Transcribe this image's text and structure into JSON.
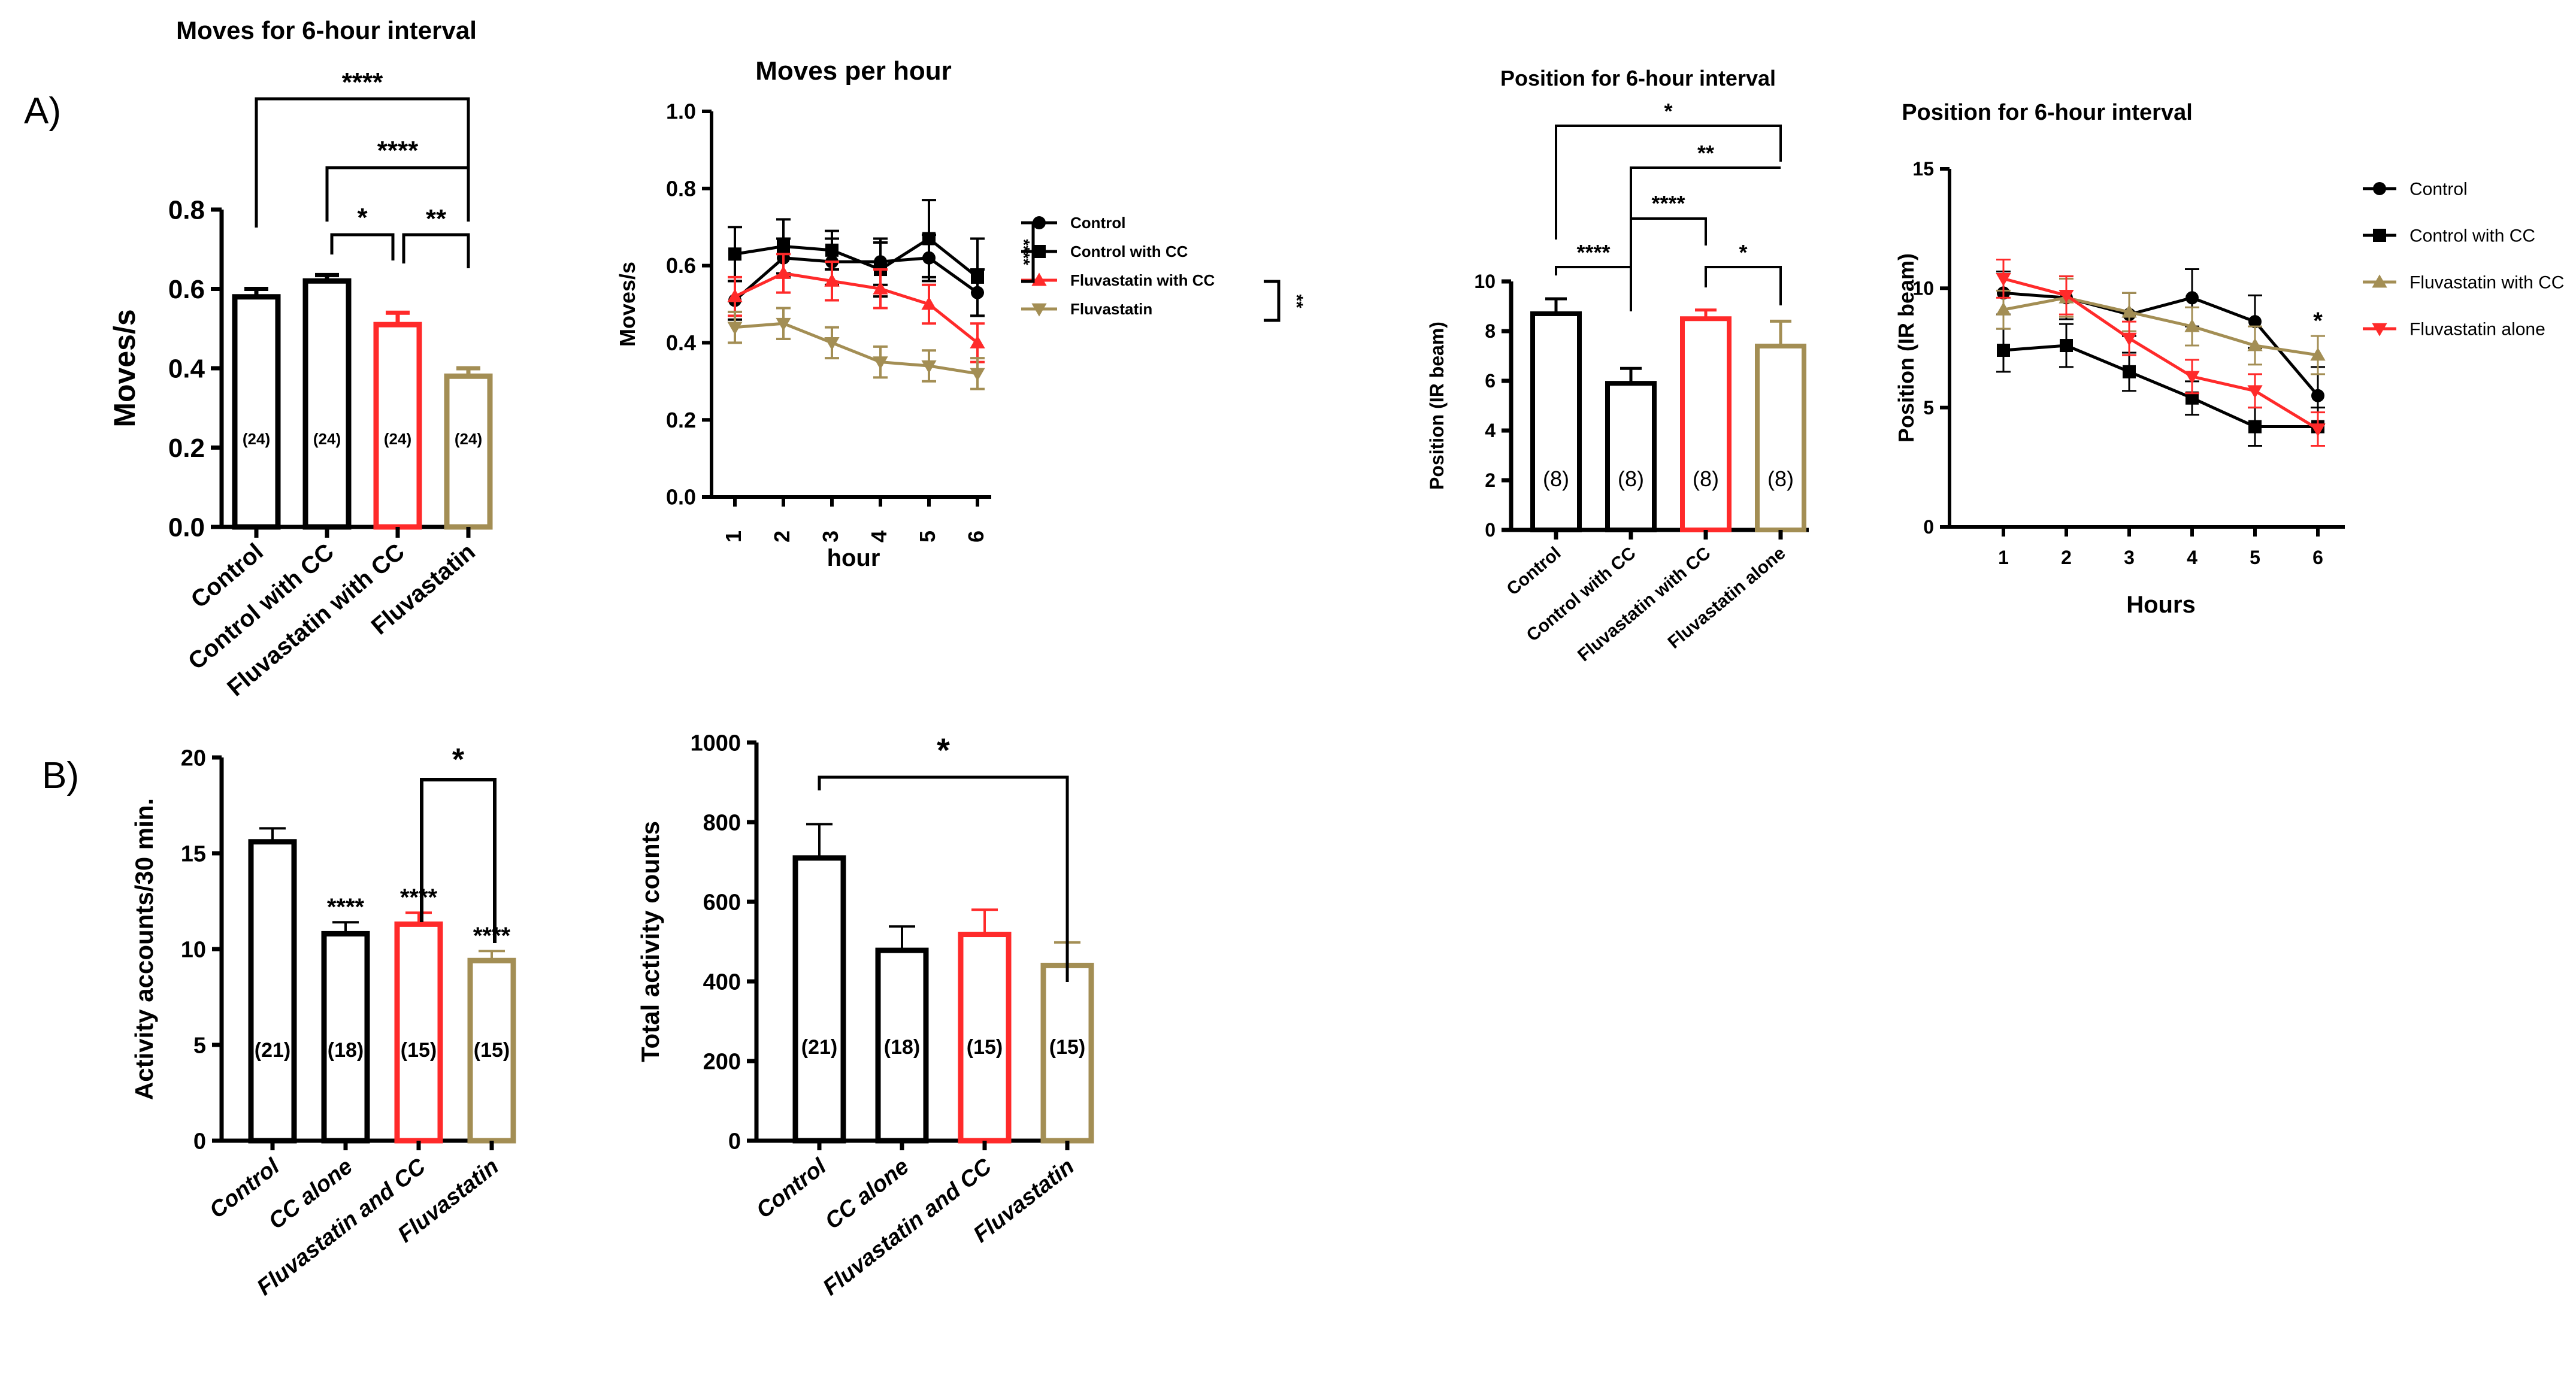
{
  "panel_labels": [
    "A)",
    "B)"
  ],
  "colors": {
    "control": "#000000",
    "control_cc": "#000000",
    "fluva_cc": "#ff2a2a",
    "fluva": "#a38e54",
    "axis": "#000000"
  },
  "chart_data": [
    {
      "id": "moves6h",
      "type": "bar",
      "title": "Moves for 6-hour interval",
      "xlabel": "",
      "ylabel": "Moves/s",
      "ylim": [
        0,
        0.8
      ],
      "yticks": [
        "0.0",
        "0.2",
        "0.4",
        "0.6",
        "0.8"
      ],
      "tick_values": [
        0,
        0.2,
        0.4,
        0.6,
        0.8
      ],
      "categories": [
        "Control",
        "Control with CC",
        "Fluvastatin with CC",
        "Fluvastatin"
      ],
      "values": [
        0.58,
        0.62,
        0.51,
        0.38
      ],
      "errors": [
        0.02,
        0.015,
        0.03,
        0.02
      ],
      "n_labels": [
        "(24)",
        "(24)",
        "(24)",
        "(24)"
      ],
      "bar_colors": [
        "#000000",
        "#000000",
        "#ff2a2a",
        "#a38e54"
      ],
      "annotations": [
        {
          "text": "****",
          "from": 0,
          "to": 3
        },
        {
          "text": "****",
          "from": 1,
          "to": 3
        },
        {
          "text": "*",
          "from": 1,
          "to": 2
        },
        {
          "text": "**",
          "from": 2,
          "to": 3
        }
      ]
    },
    {
      "id": "movesHour",
      "type": "line",
      "title": "Moves per hour",
      "xlabel": "hour",
      "ylabel": "Moves/s",
      "ylim": [
        0,
        1.0
      ],
      "yticks": [
        "0.0",
        "0.2",
        "0.4",
        "0.6",
        "0.8",
        "1.0"
      ],
      "tick_values": [
        0,
        0.2,
        0.4,
        0.6,
        0.8,
        1.0
      ],
      "x": [
        1,
        2,
        3,
        4,
        5,
        6
      ],
      "xticks": [
        "1",
        "2",
        "3",
        "4",
        "5",
        "6"
      ],
      "series": [
        {
          "name": "Control",
          "values": [
            0.51,
            0.62,
            0.61,
            0.61,
            0.62,
            0.53
          ],
          "errors": [
            0.05,
            0.05,
            0.06,
            0.06,
            0.06,
            0.06
          ],
          "color": "#000000",
          "marker": "circle"
        },
        {
          "name": "Control with CC",
          "values": [
            0.63,
            0.65,
            0.64,
            0.59,
            0.67,
            0.57
          ],
          "errors": [
            0.07,
            0.07,
            0.05,
            0.07,
            0.1,
            0.1
          ],
          "color": "#000000",
          "marker": "square"
        },
        {
          "name": "Fluvastatin with CC",
          "values": [
            0.52,
            0.58,
            0.56,
            0.54,
            0.5,
            0.4
          ],
          "errors": [
            0.05,
            0.05,
            0.05,
            0.05,
            0.05,
            0.05
          ],
          "color": "#ff2a2a",
          "marker": "triangle-up"
        },
        {
          "name": "Fluvastatin",
          "values": [
            0.44,
            0.45,
            0.4,
            0.35,
            0.34,
            0.32
          ],
          "errors": [
            0.04,
            0.04,
            0.04,
            0.04,
            0.04,
            0.04
          ],
          "color": "#a38e54",
          "marker": "triangle-down"
        }
      ],
      "legend_position": "right",
      "annotations": [
        {
          "text": "****"
        },
        {
          "text": "**"
        }
      ]
    },
    {
      "id": "pos6h",
      "type": "bar",
      "title": "Position for 6-hour interval",
      "xlabel": "",
      "ylabel": "Position (IR beam)",
      "ylim": [
        0,
        10
      ],
      "yticks": [
        "0",
        "2",
        "4",
        "6",
        "8",
        "10"
      ],
      "tick_values": [
        0,
        2,
        4,
        6,
        8,
        10
      ],
      "categories": [
        "Control",
        "Control with CC",
        "Fluvastatin with CC",
        "Fluvastatin alone"
      ],
      "values": [
        8.7,
        5.9,
        8.5,
        7.4
      ],
      "errors": [
        0.6,
        0.6,
        0.35,
        1.0
      ],
      "n_labels": [
        "(8)",
        "(8)",
        "(8)",
        "(8)"
      ],
      "bar_colors": [
        "#000000",
        "#000000",
        "#ff2a2a",
        "#a38e54"
      ],
      "annotations": [
        {
          "text": "*",
          "from": 0,
          "to": 3
        },
        {
          "text": "**",
          "from": 1,
          "to": 3
        },
        {
          "text": "****",
          "from": 1,
          "to": 2
        },
        {
          "text": "****",
          "from": 0,
          "to": 1
        },
        {
          "text": "*",
          "from": 2,
          "to": 3
        }
      ]
    },
    {
      "id": "posHour",
      "type": "line",
      "title": "Position for 6-hour interval",
      "xlabel": "Hours",
      "ylabel": "Position (IR beam)",
      "ylim": [
        0,
        15
      ],
      "yticks": [
        "0",
        "5",
        "10",
        "15"
      ],
      "tick_values": [
        0,
        5,
        10,
        15
      ],
      "x": [
        1,
        2,
        3,
        4,
        5,
        6
      ],
      "xticks": [
        "1",
        "2",
        "3",
        "4",
        "5",
        "6"
      ],
      "series": [
        {
          "name": "Control",
          "values": [
            9.8,
            9.6,
            8.9,
            9.6,
            8.6,
            5.5
          ],
          "errors": [
            0.9,
            0.9,
            0.9,
            1.2,
            1.1,
            1.2
          ],
          "color": "#000000",
          "marker": "circle"
        },
        {
          "name": "Control with CC",
          "values": [
            7.4,
            7.6,
            6.5,
            5.4,
            4.2,
            4.2
          ],
          "errors": [
            0.9,
            0.9,
            0.8,
            0.7,
            0.8,
            0.8
          ],
          "color": "#000000",
          "marker": "square"
        },
        {
          "name": "Fluvastatin with CC",
          "values": [
            9.1,
            9.6,
            9.0,
            8.4,
            7.6,
            7.2
          ],
          "errors": [
            0.8,
            0.8,
            0.8,
            0.8,
            0.8,
            0.8
          ],
          "color": "#a38e54",
          "marker": "triangle-up"
        },
        {
          "name": "Fluvastatin alone",
          "values": [
            10.4,
            9.7,
            7.9,
            6.3,
            5.7,
            4.1
          ],
          "errors": [
            0.8,
            0.8,
            0.7,
            0.7,
            0.7,
            0.7
          ],
          "color": "#ff2a2a",
          "marker": "triangle-down"
        }
      ],
      "legend_position": "right",
      "annotations": [
        {
          "text": "*",
          "x": 6
        }
      ]
    },
    {
      "id": "act30",
      "type": "bar",
      "title": "",
      "xlabel": "",
      "ylabel": "Activity accounts/30 min.",
      "ylim": [
        0,
        20
      ],
      "yticks": [
        "0",
        "5",
        "10",
        "15",
        "20"
      ],
      "tick_values": [
        0,
        5,
        10,
        15,
        20
      ],
      "categories": [
        "Control",
        "CC alone",
        "Fluvastatin and CC",
        "Fluvastatin"
      ],
      "values": [
        15.6,
        10.8,
        11.3,
        9.4
      ],
      "errors": [
        0.7,
        0.6,
        0.6,
        0.5
      ],
      "n_labels": [
        "(21)",
        "(18)",
        "(15)",
        "(15)"
      ],
      "bar_colors": [
        "#000000",
        "#000000",
        "#ff2a2a",
        "#a38e54"
      ],
      "star_labels": [
        "",
        "****",
        "****",
        "****"
      ],
      "annotations": [
        {
          "text": "*",
          "from": 2,
          "to": 3
        }
      ]
    },
    {
      "id": "totalAct",
      "type": "bar",
      "title": "",
      "xlabel": "",
      "ylabel": "Total activity counts",
      "ylim": [
        0,
        1000
      ],
      "yticks": [
        "0",
        "200",
        "400",
        "600",
        "800",
        "1000"
      ],
      "tick_values": [
        0,
        200,
        400,
        600,
        800,
        1000
      ],
      "categories": [
        "Control",
        "CC alone",
        "Fluvastatin and CC",
        "Fluvastatin"
      ],
      "values": [
        710,
        478,
        518,
        440
      ],
      "errors": [
        85,
        60,
        62,
        58
      ],
      "n_labels": [
        "(21)",
        "(18)",
        "(15)",
        "(15)"
      ],
      "bar_colors": [
        "#000000",
        "#000000",
        "#ff2a2a",
        "#a38e54"
      ],
      "annotations": [
        {
          "text": "*",
          "from": 0,
          "to": 3
        }
      ]
    }
  ]
}
